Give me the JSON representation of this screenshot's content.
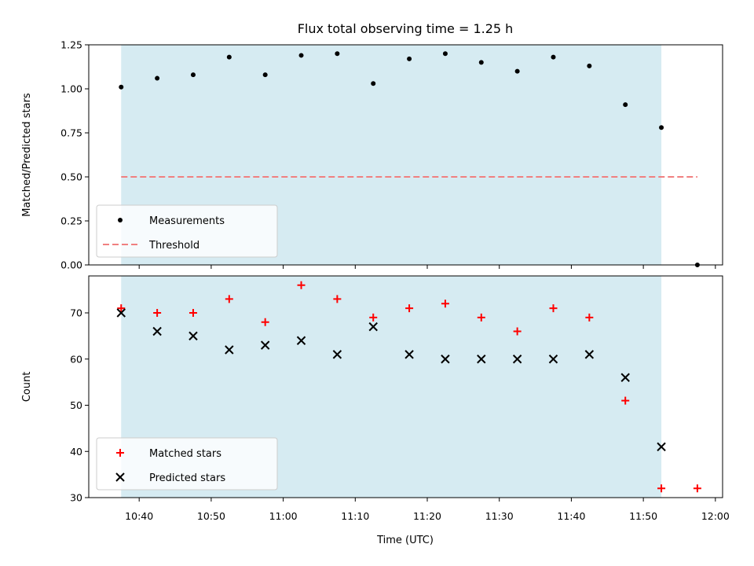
{
  "chart_data": {
    "type": "scatter",
    "title": "Flux total observing time = 1.25 h",
    "xlabel": "Time (UTC)",
    "x_ticks": [
      "10:40",
      "10:50",
      "11:00",
      "11:10",
      "11:20",
      "11:30",
      "11:40",
      "11:50",
      "12:00"
    ],
    "xlim": [
      "10:33",
      "12:01"
    ],
    "shaded_interval": [
      "10:37:30",
      "11:52:30"
    ],
    "colors": {
      "shade": "#add8e6",
      "measurements": "#000000",
      "threshold": "#f08080",
      "matched": "#ff0000",
      "predicted": "#000000"
    },
    "panels": [
      {
        "ylabel": "Matched/Predicted stars",
        "ylim": [
          0,
          1.25
        ],
        "y_ticks": [
          "0.00",
          "0.25",
          "0.50",
          "0.75",
          "1.00",
          "1.25"
        ],
        "legend_position": "lower left",
        "series": [
          {
            "name": "Measurements",
            "marker": "dot",
            "x": [
              "10:37:30",
              "10:42:30",
              "10:47:30",
              "10:52:30",
              "10:57:30",
              "11:02:30",
              "11:07:30",
              "11:12:30",
              "11:17:30",
              "11:22:30",
              "11:27:30",
              "11:32:30",
              "11:37:30",
              "11:42:30",
              "11:47:30",
              "11:52:30",
              "11:57:30"
            ],
            "y": [
              1.01,
              1.06,
              1.08,
              1.18,
              1.08,
              1.19,
              1.2,
              1.03,
              1.17,
              1.2,
              1.15,
              1.1,
              1.18,
              1.13,
              0.91,
              0.78,
              0.0
            ]
          },
          {
            "name": "Threshold",
            "marker": "dashed-line",
            "x": [
              "10:37:30",
              "11:57:30"
            ],
            "y": [
              0.5,
              0.5
            ]
          }
        ]
      },
      {
        "ylabel": "Count",
        "ylim": [
          30,
          78
        ],
        "y_ticks": [
          "30",
          "40",
          "50",
          "60",
          "70"
        ],
        "legend_position": "lower left",
        "series": [
          {
            "name": "Matched stars",
            "marker": "plus",
            "x": [
              "10:37:30",
              "10:42:30",
              "10:47:30",
              "10:52:30",
              "10:57:30",
              "11:02:30",
              "11:07:30",
              "11:12:30",
              "11:17:30",
              "11:22:30",
              "11:27:30",
              "11:32:30",
              "11:37:30",
              "11:42:30",
              "11:47:30",
              "11:52:30",
              "11:57:30"
            ],
            "y": [
              71,
              70,
              70,
              73,
              68,
              76,
              73,
              69,
              71,
              72,
              69,
              66,
              71,
              69,
              51,
              32,
              32
            ]
          },
          {
            "name": "Predicted stars",
            "marker": "x",
            "x": [
              "10:37:30",
              "10:42:30",
              "10:47:30",
              "10:52:30",
              "10:57:30",
              "11:02:30",
              "11:07:30",
              "11:12:30",
              "11:17:30",
              "11:22:30",
              "11:27:30",
              "11:32:30",
              "11:37:30",
              "11:42:30",
              "11:47:30",
              "11:52:30"
            ],
            "y": [
              70,
              66,
              65,
              62,
              63,
              64,
              61,
              67,
              61,
              60,
              60,
              60,
              60,
              61,
              56,
              41
            ]
          }
        ]
      }
    ]
  }
}
